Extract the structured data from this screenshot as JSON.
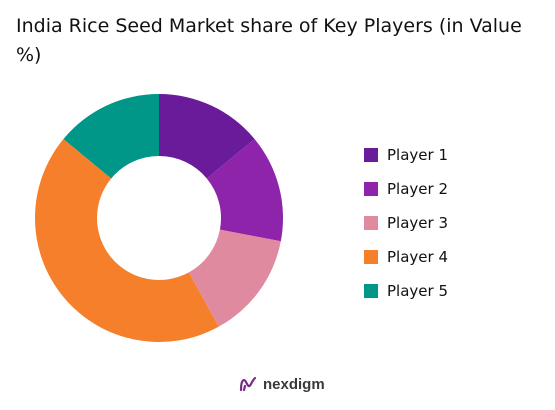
{
  "title": "India Rice Seed Market share of Key Players (in Value %)",
  "brand": {
    "name": "nexdigm",
    "icon": "nexdigm-logo-icon"
  },
  "legend": {
    "placement": "right"
  },
  "chart_data": {
    "type": "pie",
    "donut": true,
    "title": "India Rice Seed Market share of Key Players (in Value %)",
    "categories": [
      "Player 1",
      "Player 2",
      "Player 3",
      "Player 4",
      "Player 5"
    ],
    "values": [
      14,
      14,
      14,
      44,
      14
    ],
    "colors": [
      "#6a1b9a",
      "#8e24aa",
      "#e08aa0",
      "#f57f2a",
      "#009688"
    ],
    "start": "12 o'clock",
    "direction": "clockwise"
  }
}
